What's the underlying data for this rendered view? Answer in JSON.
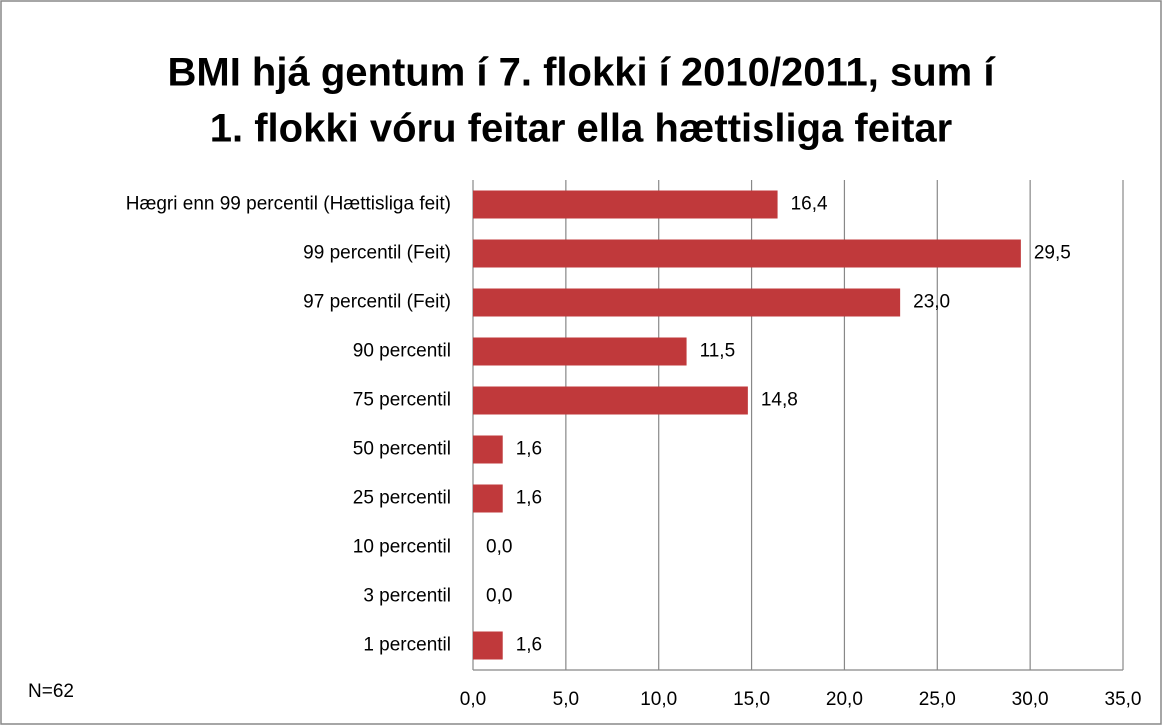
{
  "chart_data": {
    "type": "bar",
    "orientation": "horizontal",
    "title": [
      "BMI hjá gentum í 7. flokki í 2010/2011, sum í",
      "1. flokki vóru feitar ella hættisliga feitar"
    ],
    "annotation": "N=62",
    "categories": [
      "Hægri enn 99 percentil (Hættisliga feit)",
      "99 percentil (Feit)",
      "97 percentil (Feit)",
      "90 percentil",
      "75 percentil",
      "50 percentil",
      "25 percentil",
      "10 percentil",
      "3 percentil",
      "1 percentil"
    ],
    "values": [
      16.4,
      29.5,
      23.0,
      11.5,
      14.8,
      1.6,
      1.6,
      0.0,
      0.0,
      1.6
    ],
    "value_labels": [
      "16,4",
      "29,5",
      "23,0",
      "11,5",
      "14,8",
      "1,6",
      "1,6",
      "0,0",
      "0,0",
      "1,6"
    ],
    "color": "#c0393b",
    "xlim": [
      0,
      35
    ],
    "xticks": [
      {
        "value": 0,
        "label": "0,0"
      },
      {
        "value": 5,
        "label": "5,0"
      },
      {
        "value": 10,
        "label": "10,0"
      },
      {
        "value": 15,
        "label": "15,0"
      },
      {
        "value": 20,
        "label": "20,0"
      },
      {
        "value": 25,
        "label": "25,0"
      },
      {
        "value": 30,
        "label": "30,0"
      },
      {
        "value": 35,
        "label": "35,0"
      }
    ],
    "grid": true
  }
}
